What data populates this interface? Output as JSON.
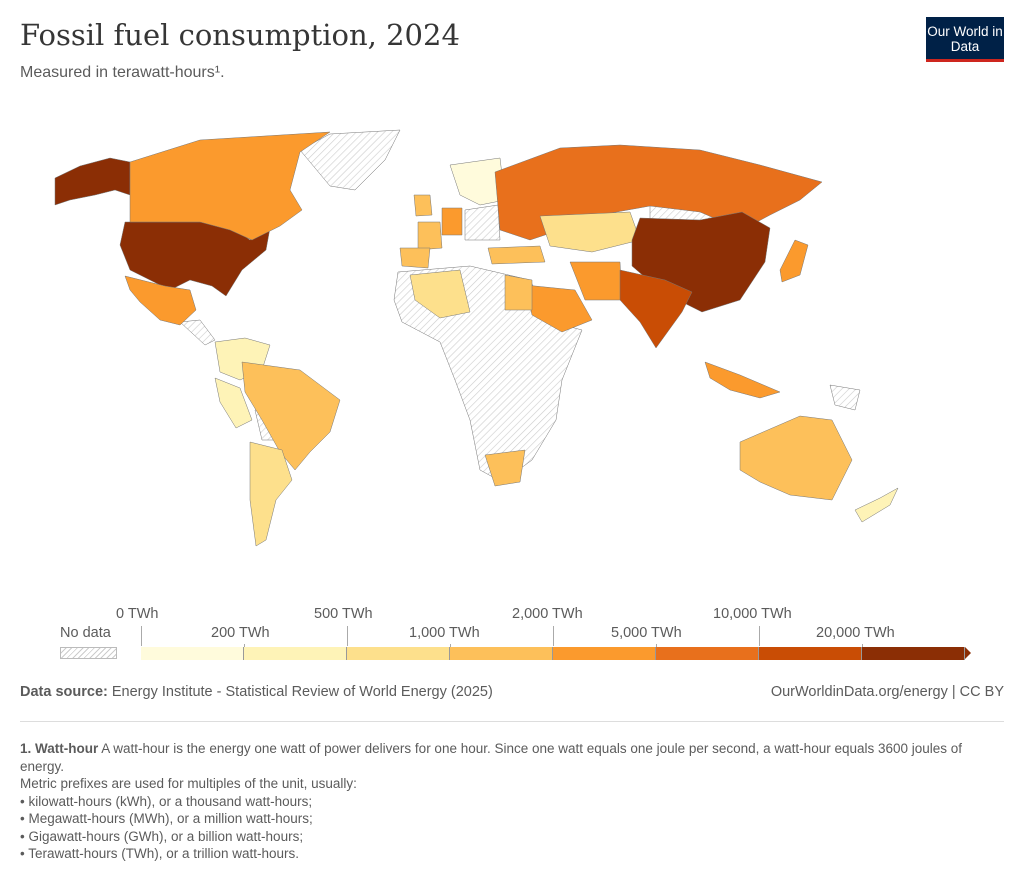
{
  "header": {
    "title": "Fossil fuel consumption, 2024",
    "subtitle": "Measured in terawatt-hours¹.",
    "logo": "Our World in Data"
  },
  "colors": {
    "no_data": "hatched",
    "bins": [
      "#fffbdc",
      "#fef3b7",
      "#fde08c",
      "#fdc05a",
      "#fb9a2d",
      "#e8701c",
      "#c94d05",
      "#8b2e05"
    ],
    "logo_bg": "#002147",
    "logo_accent": "#ce261e"
  },
  "legend": {
    "no_data": "No data",
    "ticks": [
      "0 TWh",
      "200 TWh",
      "500 TWh",
      "1,000 TWh",
      "2,000 TWh",
      "5,000 TWh",
      "10,000 TWh",
      "20,000 TWh"
    ]
  },
  "map_regions": [
    {
      "name": "United States",
      "bin": 7
    },
    {
      "name": "China",
      "bin": 7
    },
    {
      "name": "India",
      "bin": 6
    },
    {
      "name": "Russia",
      "bin": 5
    },
    {
      "name": "Canada",
      "bin": 4
    },
    {
      "name": "Japan",
      "bin": 4
    },
    {
      "name": "Iran",
      "bin": 4
    },
    {
      "name": "Saudi Arabia",
      "bin": 4
    },
    {
      "name": "Indonesia",
      "bin": 4
    },
    {
      "name": "Mexico",
      "bin": 4
    },
    {
      "name": "Germany",
      "bin": 4
    },
    {
      "name": "Brazil",
      "bin": 3
    },
    {
      "name": "Australia",
      "bin": 3
    },
    {
      "name": "South Africa",
      "bin": 3
    },
    {
      "name": "France",
      "bin": 3
    },
    {
      "name": "Spain",
      "bin": 3
    },
    {
      "name": "United Kingdom",
      "bin": 3
    },
    {
      "name": "Egypt",
      "bin": 3
    },
    {
      "name": "Turkey",
      "bin": 3
    },
    {
      "name": "Kazakhstan",
      "bin": 2
    },
    {
      "name": "Algeria",
      "bin": 2
    },
    {
      "name": "Argentina",
      "bin": 2
    },
    {
      "name": "Peru",
      "bin": 1
    },
    {
      "name": "Colombia",
      "bin": 1
    },
    {
      "name": "Nordics",
      "bin": 0
    },
    {
      "name": "New Zealand",
      "bin": 1
    }
  ],
  "footer": {
    "source_label": "Data source:",
    "source": "Energy Institute - Statistical Review of World Energy (2025)",
    "link": "OurWorldinData.org/energy | CC BY"
  },
  "notes": {
    "term": "1. Watt-hour",
    "definition": "A watt-hour is the energy one watt of power delivers for one hour. Since one watt equals one joule per second, a watt-hour equals 3600 joules of energy.",
    "intro": "Metric prefixes are used for multiples of the unit, usually:",
    "items": [
      "• kilowatt-hours (kWh), or a thousand watt-hours;",
      "• Megawatt-hours (MWh), or a million watt-hours;",
      "• Gigawatt-hours (GWh), or a billion watt-hours;",
      "• Terawatt-hours (TWh), or a trillion watt-hours."
    ]
  }
}
